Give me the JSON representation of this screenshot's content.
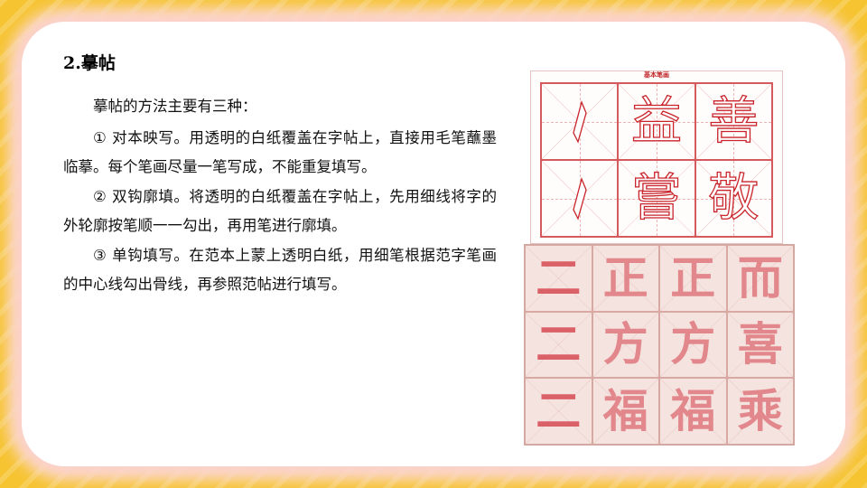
{
  "slide": {
    "title": "2.摹帖",
    "paragraphs": [
      "摹帖的方法主要有三种：",
      "① 对本映写。用透明的白纸覆盖在字帖上，直接用毛笔蘸墨临摹。每个笔画尽量一笔写成，不能重复填写。",
      "② 双钩廓填。将透明的白纸覆盖在字帖上，先用细线将字的外轮廓按笔顺一一勾出，再用笔进行廓填。",
      "③ 单钩填写。在范本上蒙上透明白纸，用细笔根据范字笔画的中心线勾出骨线，再参照范帖进行填写。"
    ]
  },
  "image_top": {
    "caption": "基本笔画",
    "row1": [
      "",
      "益",
      "善"
    ],
    "row2": [
      "",
      "嘗",
      "敬"
    ]
  },
  "image_bottom": {
    "rows": [
      [
        "二",
        "正",
        "正",
        "而"
      ],
      [
        "二",
        "方",
        "方",
        "喜"
      ],
      [
        "二",
        "福",
        "福",
        "乘"
      ]
    ]
  },
  "colors": {
    "background": "#f6c431",
    "frame": "#ffffff",
    "frame_glow": "#fbd0cb",
    "stroke_red": "#c9242b",
    "practice_pink": "#e07f85"
  }
}
